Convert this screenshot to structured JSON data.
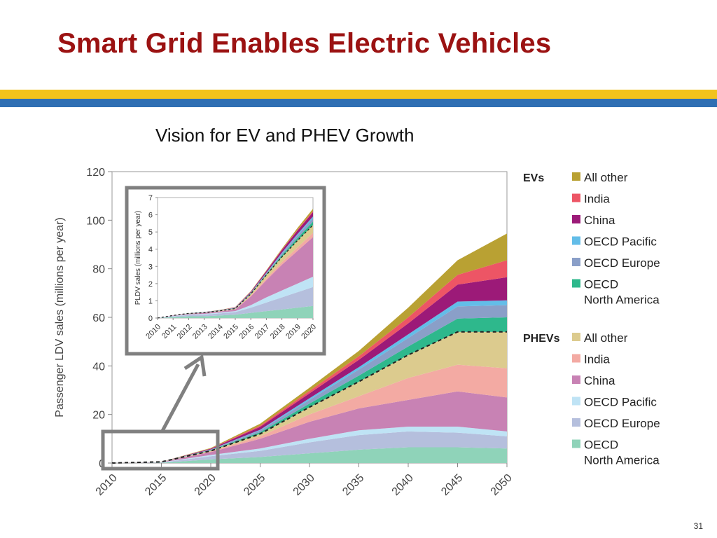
{
  "header": {
    "title": "Smart Grid Enables Electric Vehicles",
    "subtitle": "Vision for EV and PHEV Growth",
    "page_number": "31"
  },
  "colors": {
    "title": "#9b1212",
    "band_yellow": "#f2c31c",
    "band_blue": "#2f6fb3",
    "highlight_box": "#808080"
  },
  "chart_data": [
    {
      "type": "area",
      "stacked": true,
      "ylabel": "Passenger LDV sales (millions per year)",
      "xlabel": "",
      "x": [
        2010,
        2015,
        2020,
        2025,
        2030,
        2035,
        2040,
        2045,
        2050
      ],
      "x_ticks": [
        "2010",
        "2015",
        "2020",
        "2025",
        "2030",
        "2035",
        "2040",
        "2045",
        "2050"
      ],
      "y_ticks": [
        "0",
        "20",
        "40",
        "60",
        "80",
        "100",
        "120"
      ],
      "ylim": [
        0,
        120
      ],
      "legend_groups": [
        {
          "title": "EVs",
          "items": [
            "All other",
            "India",
            "China",
            "OECD Pacific",
            "OECD Europe",
            "OECD North America"
          ]
        },
        {
          "title": "PHEVs",
          "items": [
            "All other",
            "India",
            "China",
            "OECD Pacific",
            "OECD Europe",
            "OECD North America"
          ]
        }
      ],
      "series": [
        {
          "name": "PHEVs OECD North America",
          "color": "#8fd3b9",
          "values": [
            0,
            0.1,
            1.5,
            2.5,
            4,
            5.5,
            6.5,
            6.5,
            6
          ]
        },
        {
          "name": "PHEVs OECD Europe",
          "color": "#b5bfdd",
          "values": [
            0,
            0.1,
            1.3,
            2.5,
            4.5,
            6,
            6.5,
            6,
            5
          ]
        },
        {
          "name": "PHEVs OECD Pacific",
          "color": "#bfe3f5",
          "values": [
            0,
            0.1,
            0.5,
            1,
            1.5,
            2,
            2,
            2.5,
            2
          ]
        },
        {
          "name": "PHEVs China",
          "color": "#c882b4",
          "values": [
            0,
            0.1,
            1.2,
            4,
            7,
            9,
            11,
            14.5,
            14
          ]
        },
        {
          "name": "PHEVs India",
          "color": "#f3aaa3",
          "values": [
            0,
            0.05,
            0.3,
            1,
            3,
            5,
            9,
            11,
            12
          ]
        },
        {
          "name": "PHEVs All other",
          "color": "#dccb8e",
          "values": [
            0,
            0.05,
            0.3,
            1,
            3,
            6,
            9.5,
            13.5,
            15
          ]
        },
        {
          "name": "EVs OECD North America",
          "color": "#2eb88c",
          "values": [
            0,
            0,
            0.2,
            0.7,
            1.5,
            2.5,
            3.5,
            5.5,
            6
          ]
        },
        {
          "name": "EVs OECD Europe",
          "color": "#8a9fc8",
          "values": [
            0,
            0,
            0.2,
            0.7,
            1.5,
            2.5,
            3.5,
            5,
            5
          ]
        },
        {
          "name": "EVs OECD Pacific",
          "color": "#63bde8",
          "values": [
            0,
            0,
            0.1,
            0.3,
            0.7,
            1,
            1.5,
            2,
            2
          ]
        },
        {
          "name": "EVs China",
          "color": "#9c1a78",
          "values": [
            0,
            0,
            0.3,
            1.2,
            2,
            3,
            4.5,
            7,
            9.5
          ]
        },
        {
          "name": "EVs India",
          "color": "#ed5565",
          "values": [
            0,
            0,
            0.1,
            0.5,
            1,
            1.5,
            2.5,
            4,
            7
          ]
        },
        {
          "name": "EVs All other",
          "color": "#b9a133",
          "values": [
            0,
            0,
            0.2,
            0.8,
            1.3,
            2.2,
            4,
            6,
            11
          ]
        }
      ],
      "dashed_line": {
        "label": "PHEV total",
        "values": [
          0,
          0.5,
          5,
          12,
          23,
          33.5,
          44.5,
          54,
          54
        ]
      }
    },
    {
      "type": "area",
      "stacked": true,
      "inset": true,
      "ylabel": "PLDV sales (millions per year)",
      "x": [
        2010,
        2011,
        2012,
        2013,
        2014,
        2015,
        2016,
        2017,
        2018,
        2019,
        2020
      ],
      "x_ticks": [
        "2010",
        "2011",
        "2012",
        "2013",
        "2014",
        "2015",
        "2016",
        "2017",
        "2018",
        "2019",
        "2020"
      ],
      "y_ticks": [
        "0",
        "1",
        "2",
        "3",
        "4",
        "5",
        "6",
        "7"
      ],
      "ylim": [
        0,
        7
      ],
      "series": [
        {
          "name": "PHEVs OECD North America",
          "color": "#8fd3b9",
          "values": [
            0,
            0.05,
            0.1,
            0.1,
            0.15,
            0.2,
            0.3,
            0.4,
            0.5,
            0.6,
            0.7
          ]
        },
        {
          "name": "PHEVs OECD Europe",
          "color": "#b5bfdd",
          "values": [
            0,
            0.05,
            0.08,
            0.1,
            0.12,
            0.15,
            0.3,
            0.5,
            0.7,
            0.9,
            1.1
          ]
        },
        {
          "name": "PHEVs OECD Pacific",
          "color": "#bfe3f5",
          "values": [
            0,
            0.02,
            0.03,
            0.04,
            0.05,
            0.05,
            0.15,
            0.3,
            0.4,
            0.5,
            0.6
          ]
        },
        {
          "name": "PHEVs China",
          "color": "#c882b4",
          "values": [
            0,
            0.03,
            0.04,
            0.05,
            0.06,
            0.1,
            0.5,
            1,
            1.5,
            1.9,
            2.3
          ]
        },
        {
          "name": "PHEVs India",
          "color": "#f3aaa3",
          "values": [
            0,
            0,
            0.01,
            0.01,
            0.02,
            0.02,
            0.05,
            0.1,
            0.15,
            0.2,
            0.25
          ]
        },
        {
          "name": "PHEVs All other",
          "color": "#dccb8e",
          "values": [
            0,
            0,
            0.01,
            0.01,
            0.02,
            0.03,
            0.1,
            0.2,
            0.3,
            0.4,
            0.45
          ]
        },
        {
          "name": "EVs OECD North America",
          "color": "#2eb88c",
          "values": [
            0,
            0,
            0.01,
            0.01,
            0.01,
            0.02,
            0.03,
            0.05,
            0.1,
            0.15,
            0.2
          ]
        },
        {
          "name": "EVs OECD Europe",
          "color": "#8a9fc8",
          "values": [
            0,
            0,
            0,
            0.01,
            0.01,
            0.02,
            0.03,
            0.05,
            0.1,
            0.15,
            0.2
          ]
        },
        {
          "name": "EVs OECD Pacific",
          "color": "#63bde8",
          "values": [
            0,
            0,
            0,
            0.01,
            0.01,
            0.01,
            0.02,
            0.03,
            0.05,
            0.08,
            0.1
          ]
        },
        {
          "name": "EVs China",
          "color": "#9c1a78",
          "values": [
            0,
            0,
            0,
            0.01,
            0.01,
            0.02,
            0.05,
            0.1,
            0.15,
            0.2,
            0.25
          ]
        },
        {
          "name": "EVs India",
          "color": "#ed5565",
          "values": [
            0,
            0,
            0,
            0,
            0,
            0.01,
            0.01,
            0.02,
            0.03,
            0.05,
            0.07
          ]
        },
        {
          "name": "EVs All other",
          "color": "#b9a133",
          "values": [
            0,
            0,
            0,
            0,
            0.01,
            0.01,
            0.02,
            0.03,
            0.05,
            0.1,
            0.13
          ]
        }
      ],
      "dashed_line": {
        "label": "PHEV total",
        "values": [
          0,
          0.15,
          0.27,
          0.31,
          0.42,
          0.55,
          1.4,
          2.5,
          3.55,
          4.5,
          5.4
        ]
      }
    }
  ]
}
